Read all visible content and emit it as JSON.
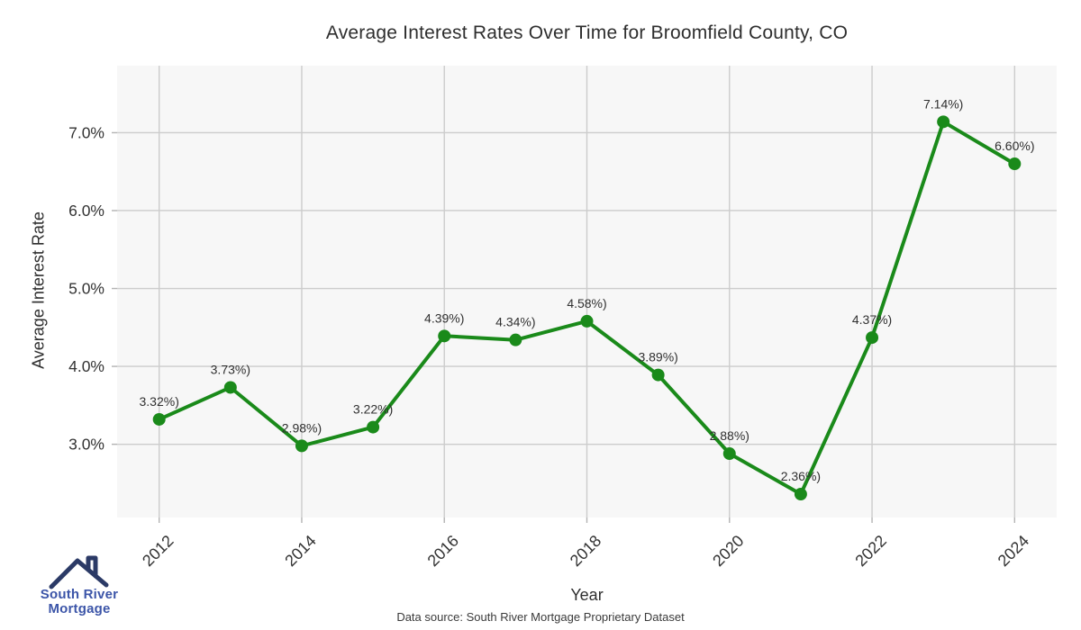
{
  "page": {
    "background": "#ffffff"
  },
  "chart_data": {
    "type": "line",
    "title": "Average Interest Rates Over Time for Broomfield County, CO",
    "xlabel": "Year",
    "ylabel": "Average Interest Rate",
    "x": [
      2012,
      2013,
      2014,
      2015,
      2016,
      2017,
      2018,
      2019,
      2020,
      2021,
      2022,
      2023,
      2024
    ],
    "values": [
      3.32,
      3.73,
      2.98,
      3.22,
      4.39,
      4.34,
      4.58,
      3.89,
      2.88,
      2.36,
      4.37,
      7.14,
      6.6
    ],
    "point_labels": [
      "3.32%)",
      "3.73%)",
      "2.98%)",
      "3.22%)",
      "4.39%)",
      "4.34%)",
      "4.58%)",
      "3.89%)",
      "2.88%)",
      "2.36%)",
      "4.37%)",
      "7.14%)",
      "6.60%)"
    ],
    "xticks": {
      "values": [
        2012,
        2014,
        2016,
        2018,
        2020,
        2022,
        2024
      ],
      "labels": [
        "2012",
        "2014",
        "2016",
        "2018",
        "2020",
        "2022",
        "2024"
      ]
    },
    "yticks": {
      "values": [
        3,
        4,
        5,
        6,
        7
      ],
      "labels": [
        "3.0%",
        "4.0%",
        "5.0%",
        "6.0%",
        "7.0%"
      ]
    },
    "xlim": [
      2011.41,
      2024.59
    ],
    "ylim": [
      2.06,
      7.86
    ],
    "grid": true,
    "legend": "none",
    "colors": {
      "line": "#1a8a1a",
      "marker": "#1a8a1a",
      "plot_bg": "#f7f7f7",
      "grid": "#cccccc",
      "tick_mark": "#b3b3b3",
      "point_label_text": "#303030",
      "axis_text": "#333333"
    }
  },
  "footer": {
    "source_note": "Data source: South River Mortgage Proprietary Dataset"
  },
  "logo": {
    "line1": "South River",
    "line2": "Mortgage",
    "icon": "house-roof-icon",
    "text_color": "#3c55a8",
    "roof_color": "#2b3a66"
  }
}
